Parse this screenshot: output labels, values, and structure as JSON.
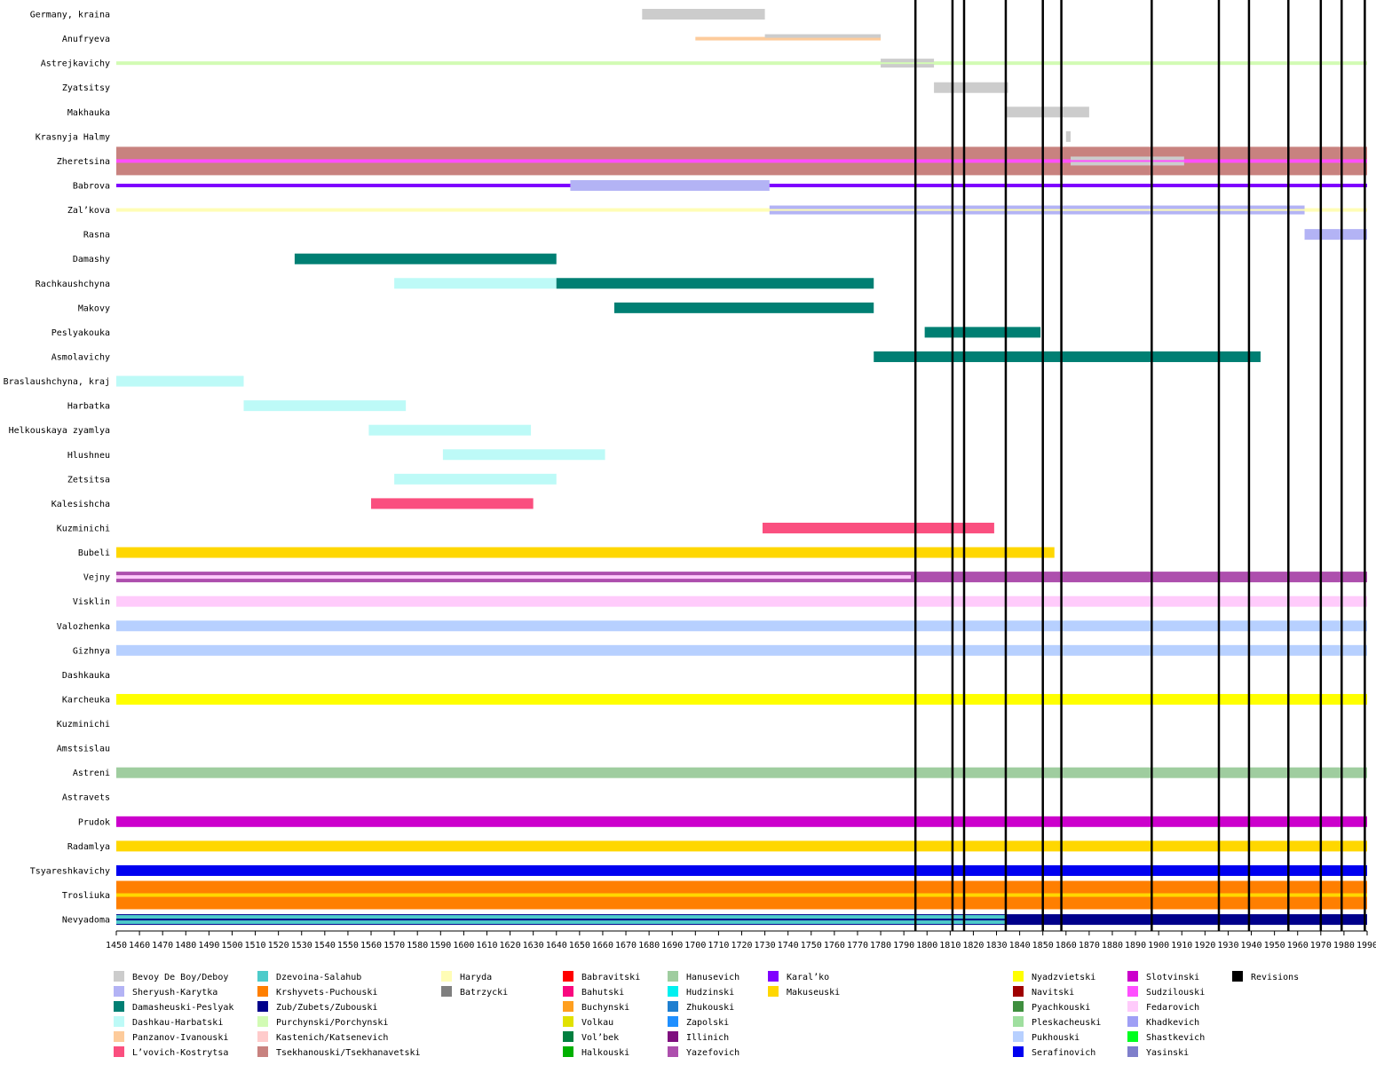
{
  "chart_data": {
    "type": "gantt",
    "title": "",
    "xlabel": "",
    "ylabel": "",
    "xlim": [
      1450,
      1990
    ],
    "x_ticks": [
      1450,
      1460,
      1470,
      1480,
      1490,
      1500,
      1510,
      1520,
      1530,
      1540,
      1550,
      1560,
      1570,
      1580,
      1590,
      1600,
      1610,
      1620,
      1630,
      1640,
      1650,
      1660,
      1670,
      1680,
      1690,
      1700,
      1710,
      1720,
      1730,
      1740,
      1750,
      1760,
      1770,
      1780,
      1790,
      1800,
      1810,
      1820,
      1830,
      1840,
      1850,
      1860,
      1870,
      1880,
      1890,
      1900,
      1910,
      1920,
      1930,
      1940,
      1950,
      1960,
      1970,
      1980,
      1990
    ],
    "revisions": [
      1795,
      1811,
      1816,
      1834,
      1850,
      1858,
      1897,
      1926,
      1939,
      1956,
      1970,
      1979,
      1989
    ],
    "rows": [
      {
        "name": "Germany, kraina",
        "bars": [
          {
            "family": "Bevoy De Boy/Deboy",
            "start": 1677,
            "end": 1730,
            "weight": "thick"
          }
        ]
      },
      {
        "name": "Anufryeva",
        "bars": [
          {
            "family": "Panzanov-Ivanouski",
            "start": 1700,
            "end": 1780,
            "weight": "thin",
            "lane": "center"
          },
          {
            "family": "Bevoy De Boy/Deboy",
            "start": 1730,
            "end": 1780,
            "weight": "thin",
            "lane": "top"
          }
        ]
      },
      {
        "name": "Astrejkavichy",
        "bars": [
          {
            "family": "Purchynski/Porchynski",
            "start": 1450,
            "end": 1990,
            "weight": "thin",
            "lane": "center"
          },
          {
            "family": "Bevoy De Boy/Deboy",
            "start": 1780,
            "end": 1803,
            "weight": "thin",
            "lane": "top"
          },
          {
            "family": "Bevoy De Boy/Deboy",
            "start": 1780,
            "end": 1803,
            "weight": "thin",
            "lane": "bottom"
          }
        ]
      },
      {
        "name": "Zyatsitsy",
        "bars": [
          {
            "family": "Bevoy De Boy/Deboy",
            "start": 1803,
            "end": 1835,
            "weight": "thick"
          }
        ]
      },
      {
        "name": "Makhauka",
        "bars": [
          {
            "family": "Bevoy De Boy/Deboy",
            "start": 1834,
            "end": 1870,
            "weight": "thick"
          }
        ]
      },
      {
        "name": "Krasnyja Halmy",
        "bars": [
          {
            "family": "Bevoy De Boy/Deboy",
            "start": 1860,
            "end": 1862,
            "weight": "thick"
          }
        ]
      },
      {
        "name": "Zheretsina",
        "bars": [
          {
            "family": "Tsekhanouski/Tsekhanavetski",
            "start": 1450,
            "end": 1990,
            "weight": "full"
          },
          {
            "family": "Sudzilouski",
            "start": 1450,
            "end": 1990,
            "weight": "thin",
            "lane": "center"
          },
          {
            "family": "Bevoy De Boy/Deboy",
            "start": 1862,
            "end": 1911,
            "weight": "thin",
            "lane": "top"
          },
          {
            "family": "Bevoy De Boy/Deboy",
            "start": 1862,
            "end": 1911,
            "weight": "thin",
            "lane": "bottom"
          }
        ]
      },
      {
        "name": "Babrova",
        "bars": [
          {
            "family": "Karal’ko",
            "start": 1450,
            "end": 1990,
            "weight": "thin",
            "lane": "center"
          },
          {
            "family": "Sheryush-Karytka",
            "start": 1646,
            "end": 1732,
            "weight": "thick"
          }
        ]
      },
      {
        "name": "Zal’kova",
        "bars": [
          {
            "family": "Haryda",
            "start": 1450,
            "end": 1990,
            "weight": "thin",
            "lane": "center"
          },
          {
            "family": "Sheryush-Karytka",
            "start": 1732,
            "end": 1963,
            "weight": "thin",
            "lane": "top"
          },
          {
            "family": "Sheryush-Karytka",
            "start": 1732,
            "end": 1963,
            "weight": "thin",
            "lane": "bottom"
          }
        ]
      },
      {
        "name": "Rasna",
        "bars": [
          {
            "family": "Sheryush-Karytka",
            "start": 1963,
            "end": 1990,
            "weight": "thick"
          }
        ]
      },
      {
        "name": "Damashy",
        "bars": [
          {
            "family": "Damasheuski-Peslyak",
            "start": 1527,
            "end": 1640,
            "weight": "thick"
          }
        ]
      },
      {
        "name": "Rachkaushchyna",
        "bars": [
          {
            "family": "Dashkau-Harbatski",
            "start": 1570,
            "end": 1640,
            "weight": "thick"
          },
          {
            "family": "Damasheuski-Peslyak",
            "start": 1640,
            "end": 1777,
            "weight": "thick"
          }
        ]
      },
      {
        "name": "Makovy",
        "bars": [
          {
            "family": "Damasheuski-Peslyak",
            "start": 1665,
            "end": 1777,
            "weight": "thick"
          }
        ]
      },
      {
        "name": "Peslyakouka",
        "bars": [
          {
            "family": "Damasheuski-Peslyak",
            "start": 1799,
            "end": 1849,
            "weight": "thick"
          }
        ]
      },
      {
        "name": "Asmolavichy",
        "bars": [
          {
            "family": "Damasheuski-Peslyak",
            "start": 1777,
            "end": 1944,
            "weight": "thick"
          }
        ]
      },
      {
        "name": "Braslaushchyna, kraj",
        "bars": [
          {
            "family": "Dashkau-Harbatski",
            "start": 1450,
            "end": 1505,
            "weight": "thick"
          }
        ]
      },
      {
        "name": "Harbatka",
        "bars": [
          {
            "family": "Dashkau-Harbatski",
            "start": 1505,
            "end": 1575,
            "weight": "thick"
          }
        ]
      },
      {
        "name": "Helkouskaya zyamlya",
        "bars": [
          {
            "family": "Dashkau-Harbatski",
            "start": 1559,
            "end": 1629,
            "weight": "thick"
          }
        ]
      },
      {
        "name": "Hlushneu",
        "bars": [
          {
            "family": "Dashkau-Harbatski",
            "start": 1591,
            "end": 1661,
            "weight": "thick"
          }
        ]
      },
      {
        "name": "Zetsitsa",
        "bars": [
          {
            "family": "Dashkau-Harbatski",
            "start": 1570,
            "end": 1640,
            "weight": "thick"
          }
        ]
      },
      {
        "name": "Kalesishcha",
        "bars": [
          {
            "family": "L’vovich-Kostrytsa",
            "start": 1560,
            "end": 1630,
            "weight": "thick"
          }
        ]
      },
      {
        "name": "Kuzminichi",
        "bars": [
          {
            "family": "L’vovich-Kostrytsa",
            "start": 1729,
            "end": 1829,
            "weight": "thick"
          }
        ]
      },
      {
        "name": "Bubeli",
        "bars": [
          {
            "family": "Makuseuski",
            "start": 1450,
            "end": 1855,
            "weight": "thick"
          }
        ]
      },
      {
        "name": "Vejny",
        "bars": [
          {
            "family": "Yazefovich",
            "start": 1450,
            "end": 1990,
            "weight": "thick"
          },
          {
            "family": "Fedarovich",
            "start": 1450,
            "end": 1793,
            "weight": "thin",
            "lane": "center"
          }
        ]
      },
      {
        "name": "Visklin",
        "bars": [
          {
            "family": "Fedarovich",
            "start": 1450,
            "end": 1990,
            "weight": "thick"
          }
        ]
      },
      {
        "name": "Valozhenka",
        "bars": [
          {
            "family": "Pukhouski",
            "start": 1450,
            "end": 1990,
            "weight": "thick"
          }
        ]
      },
      {
        "name": "Gizhnya",
        "bars": [
          {
            "family": "Pukhouski",
            "start": 1450,
            "end": 1990,
            "weight": "thick"
          }
        ]
      },
      {
        "name": "Dashkauka",
        "bars": []
      },
      {
        "name": "Karcheuka",
        "bars": [
          {
            "family": "Nyadzvietski",
            "start": 1450,
            "end": 1990,
            "weight": "thick"
          }
        ]
      },
      {
        "name": "Kuzminichi",
        "bars": []
      },
      {
        "name": "Amstsislau",
        "bars": []
      },
      {
        "name": "Astreni",
        "bars": [
          {
            "family": "Hanusevich",
            "start": 1450,
            "end": 1990,
            "weight": "thick"
          }
        ]
      },
      {
        "name": "Astravets",
        "bars": []
      },
      {
        "name": "Prudok",
        "bars": [
          {
            "family": "Slotvinski",
            "start": 1450,
            "end": 1990,
            "weight": "thick"
          }
        ]
      },
      {
        "name": "Radamlya",
        "bars": [
          {
            "family": "Makuseuski",
            "start": 1450,
            "end": 1990,
            "weight": "thick"
          }
        ]
      },
      {
        "name": "Tsyareshkavichy",
        "bars": [
          {
            "family": "Serafinovich",
            "start": 1450,
            "end": 1990,
            "weight": "thick"
          }
        ]
      },
      {
        "name": "Trosliuka",
        "bars": [
          {
            "family": "Krshyvets-Puchouski",
            "start": 1450,
            "end": 1990,
            "weight": "full"
          },
          {
            "family": "Makuseuski",
            "start": 1450,
            "end": 1990,
            "weight": "thin",
            "lane": "center"
          }
        ]
      },
      {
        "name": "Nevyadoma",
        "bars": [
          {
            "family": "Zub/Zubets/Zubouski",
            "start": 1450,
            "end": 1990,
            "weight": "thick"
          },
          {
            "family": "Dzevoina-Salahub",
            "start": 1450,
            "end": 1834,
            "weight": "thin",
            "lane": "top"
          },
          {
            "family": "Dzevoina-Salahub",
            "start": 1450,
            "end": 1834,
            "weight": "thin",
            "lane": "bottom"
          }
        ]
      }
    ],
    "legend": [
      {
        "label": "Bevoy De Boy/Deboy",
        "color": "#cccccc",
        "col": 0,
        "row": 0
      },
      {
        "label": "Sheryush-Karytka",
        "color": "#b3b3f5",
        "col": 0,
        "row": 1
      },
      {
        "label": "Damasheuski-Peslyak",
        "color": "#007f73",
        "col": 0,
        "row": 2
      },
      {
        "label": "Dashkau-Harbatski",
        "color": "#bdfaf7",
        "col": 0,
        "row": 3
      },
      {
        "label": "Panzanov-Ivanouski",
        "color": "#fdcb9b",
        "col": 0,
        "row": 4
      },
      {
        "label": "L’vovich-Kostrytsa",
        "color": "#fa4f7f",
        "col": 0,
        "row": 5
      },
      {
        "label": "Dzevoina-Salahub",
        "color": "#4dcbca",
        "col": 1,
        "row": 0
      },
      {
        "label": "Krshyvets-Puchouski",
        "color": "#ff7f00",
        "col": 1,
        "row": 1
      },
      {
        "label": "Zub/Zubets/Zubouski",
        "color": "#00008b",
        "col": 1,
        "row": 2
      },
      {
        "label": "Purchynski/Porchynski",
        "color": "#d2fbb4",
        "col": 1,
        "row": 3
      },
      {
        "label": "Kastenich/Katsenevich",
        "color": "#ffcbcb",
        "col": 1,
        "row": 4
      },
      {
        "label": "Tsekhanouski/Tsekhanavetski",
        "color": "#c8827f",
        "col": 1,
        "row": 5
      },
      {
        "label": "Haryda",
        "color": "#fffdb6",
        "col": 2,
        "row": 0
      },
      {
        "label": "Batrzycki",
        "color": "#7f7f7f",
        "col": 2,
        "row": 1
      },
      {
        "label": "Babravitski",
        "color": "#ff0000",
        "col": 3,
        "row": 0
      },
      {
        "label": "Bahutski",
        "color": "#f9077f",
        "col": 3,
        "row": 1
      },
      {
        "label": "Buchynski",
        "color": "#ff9f1f",
        "col": 3,
        "row": 2
      },
      {
        "label": "Volkau",
        "color": "#e1e100",
        "col": 3,
        "row": 3
      },
      {
        "label": "Vol’bek",
        "color": "#007f3f",
        "col": 3,
        "row": 4
      },
      {
        "label": "Halkouski",
        "color": "#00b000",
        "col": 3,
        "row": 5
      },
      {
        "label": "Hanusevich",
        "color": "#9fcd9f",
        "col": 4,
        "row": 0
      },
      {
        "label": "Hudzinski",
        "color": "#00f0f0",
        "col": 4,
        "row": 1
      },
      {
        "label": "Zhukouski",
        "color": "#1f7fd0",
        "col": 4,
        "row": 2
      },
      {
        "label": "Zapolski",
        "color": "#1f8fff",
        "col": 4,
        "row": 3
      },
      {
        "label": "Illinich",
        "color": "#7f0f7f",
        "col": 4,
        "row": 4
      },
      {
        "label": "Yazefovich",
        "color": "#ad4fad",
        "col": 4,
        "row": 5
      },
      {
        "label": "Karal’ko",
        "color": "#7f00ff",
        "col": 5,
        "row": 0
      },
      {
        "label": "Makuseuski",
        "color": "#ffd700",
        "col": 5,
        "row": 1
      },
      {
        "label": "Nyadzvietski",
        "color": "#ffff00",
        "col": 6,
        "row": 0
      },
      {
        "label": "Navitski",
        "color": "#9f0000",
        "col": 6,
        "row": 1
      },
      {
        "label": "Pyachkouski",
        "color": "#3f8f3f",
        "col": 6,
        "row": 2
      },
      {
        "label": "Pleskacheuski",
        "color": "#9fdf9f",
        "col": 6,
        "row": 3
      },
      {
        "label": "Pukhouski",
        "color": "#b7d0ff",
        "col": 6,
        "row": 4
      },
      {
        "label": "Serafinovich",
        "color": "#0000f0",
        "col": 6,
        "row": 5
      },
      {
        "label": "Slotvinski",
        "color": "#cc00cc",
        "col": 7,
        "row": 0
      },
      {
        "label": "Sudzilouski",
        "color": "#ff4fff",
        "col": 7,
        "row": 1
      },
      {
        "label": "Fedarovich",
        "color": "#ffcbfb",
        "col": 7,
        "row": 2
      },
      {
        "label": "Khadkevich",
        "color": "#9f9ff5",
        "col": 7,
        "row": 3
      },
      {
        "label": "Shastkevich",
        "color": "#00ff1f",
        "col": 7,
        "row": 4
      },
      {
        "label": "Yasinski",
        "color": "#7f7fcb",
        "col": 7,
        "row": 5
      },
      {
        "label": "Revisions",
        "color": "#000000",
        "col": 8,
        "row": 0
      }
    ]
  }
}
